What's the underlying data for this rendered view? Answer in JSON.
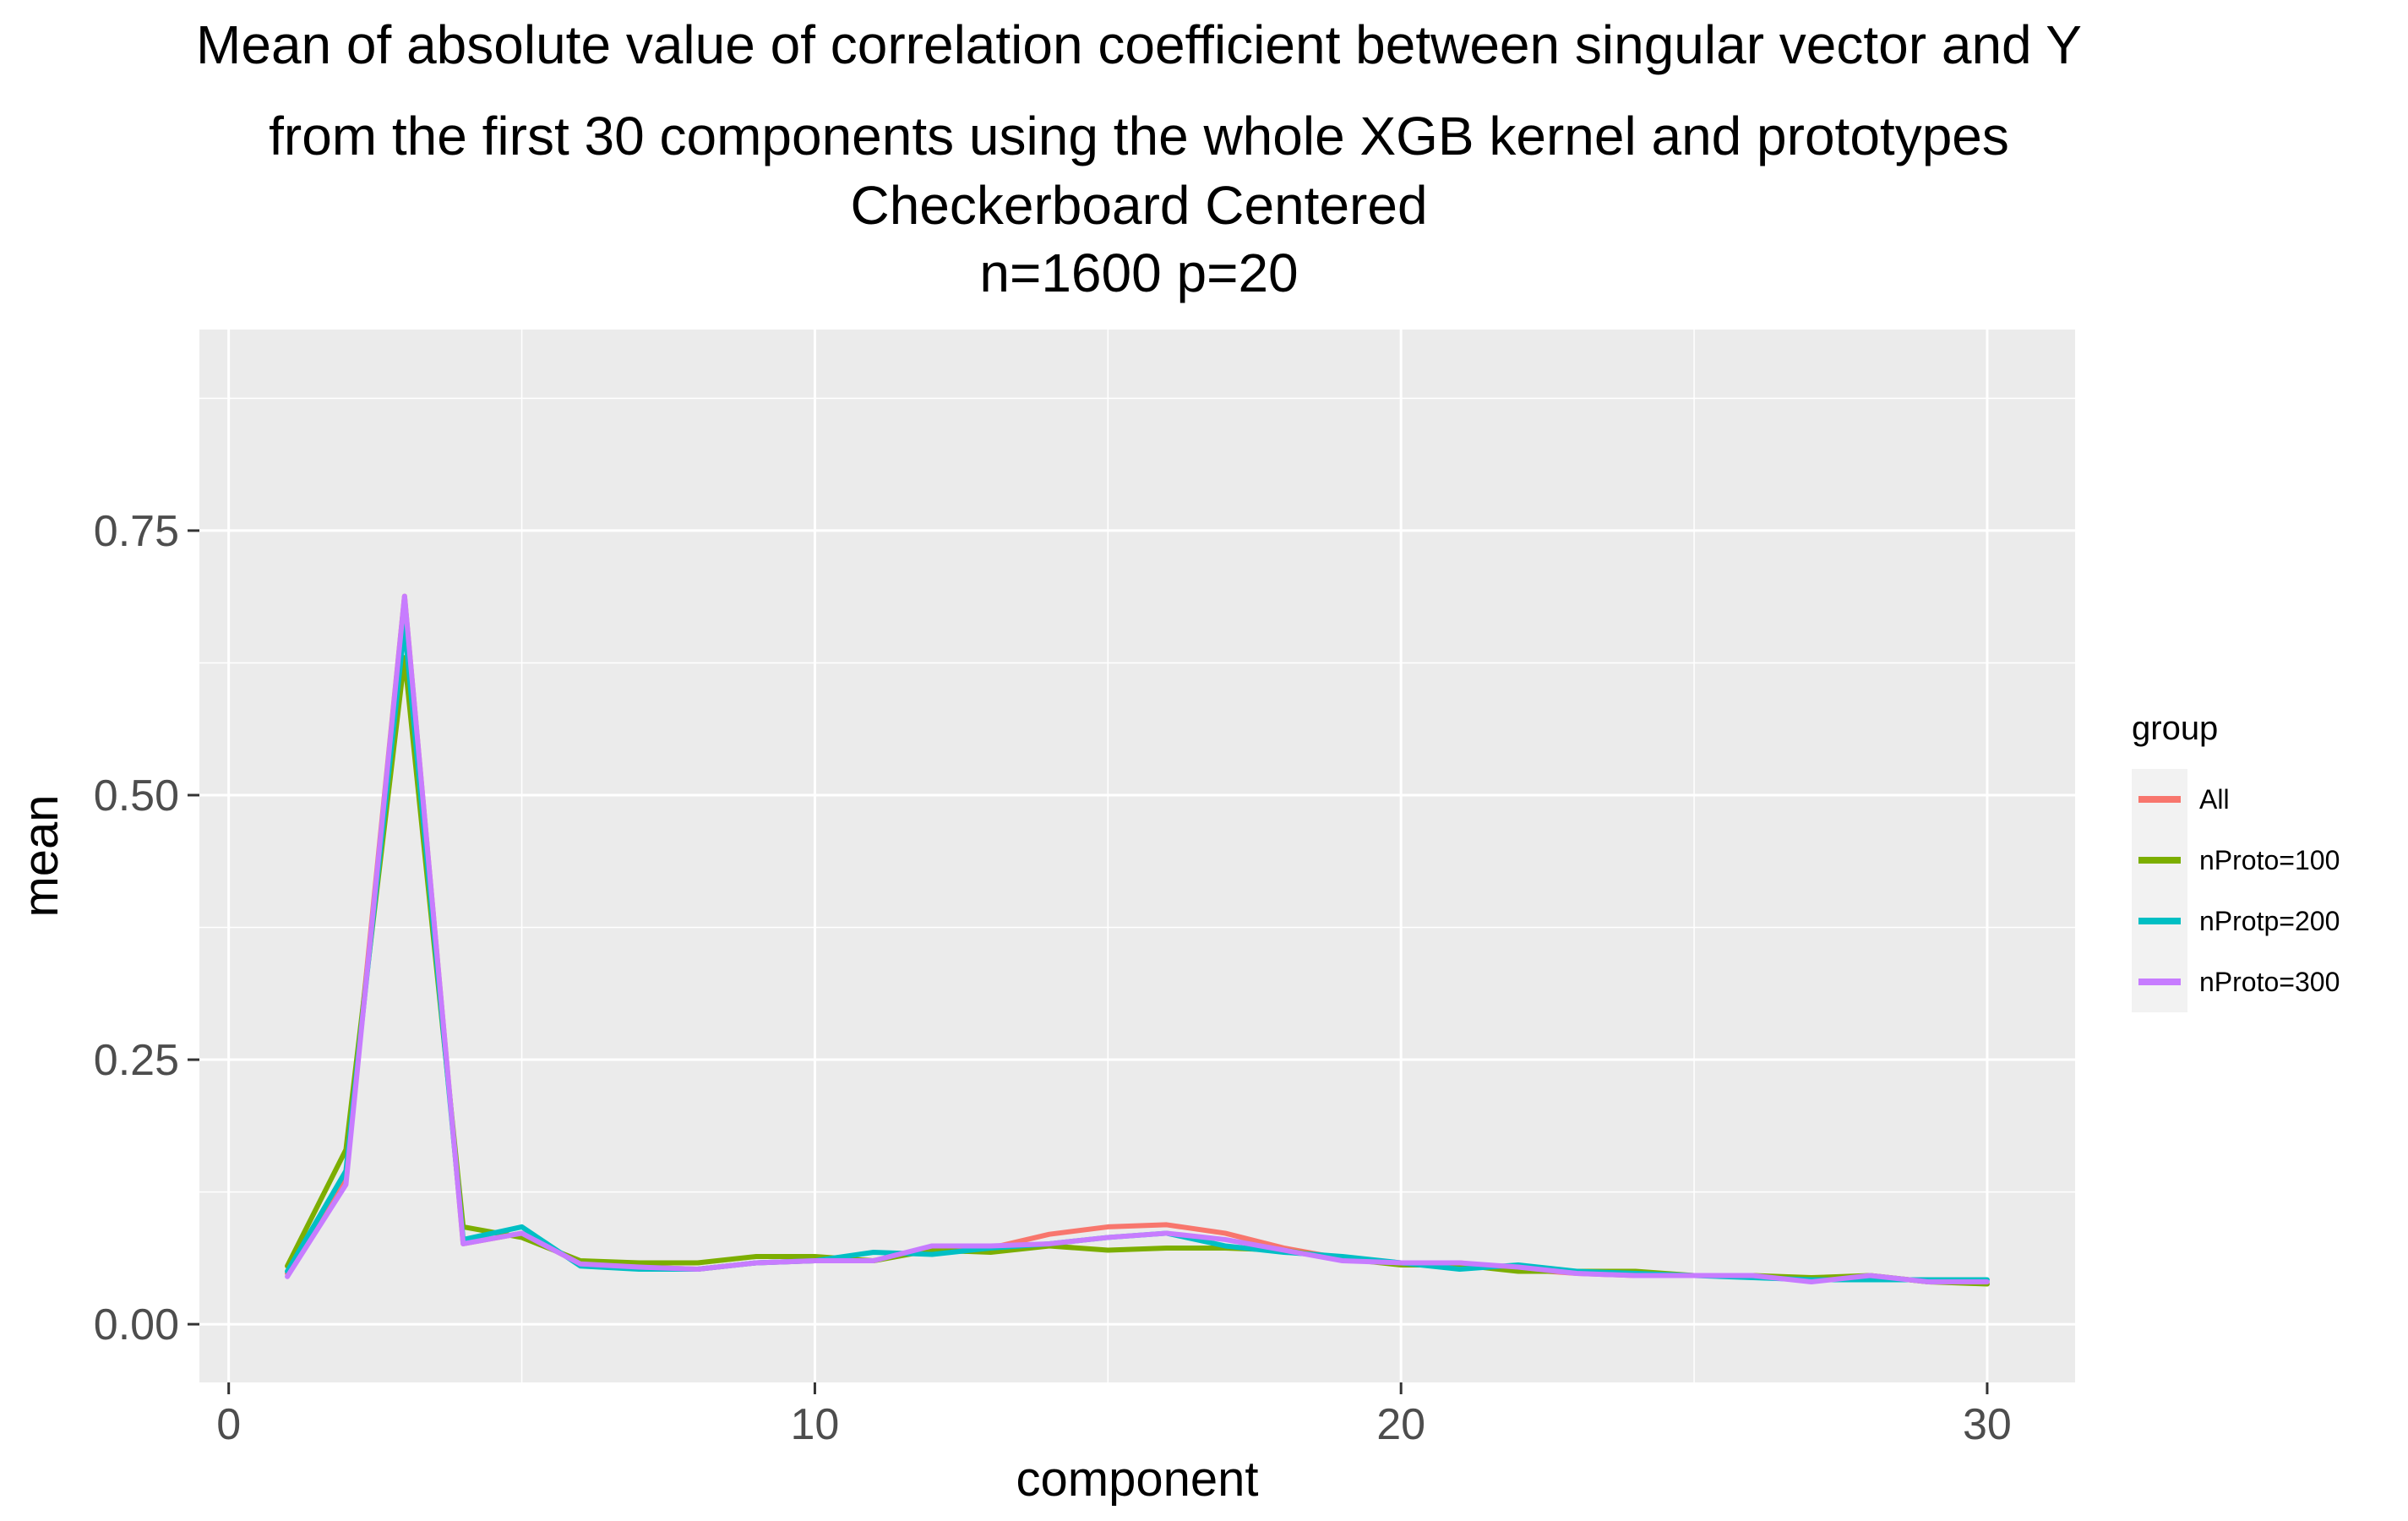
{
  "chart_data": {
    "type": "line",
    "title_lines": [
      "Mean of absolute value of correlation coefficient between singular vector and Y",
      "from the first 30 components using the whole XGB kernel and prototypes",
      "Checkerboard Centered",
      "n=1600 p=20"
    ],
    "xlabel": "component",
    "ylabel": "mean",
    "xlim": [
      -0.5,
      31.5
    ],
    "ylim": [
      -0.055,
      0.94
    ],
    "x_ticks": [
      0,
      10,
      20,
      30
    ],
    "x_tick_labels": [
      "0",
      "10",
      "20",
      "30"
    ],
    "y_ticks": [
      0,
      0.25,
      0.5,
      0.75
    ],
    "y_tick_labels": [
      "0.00",
      "0.25",
      "0.50",
      "0.75"
    ],
    "grid": true,
    "legend_title": "group",
    "legend_position": "right",
    "x": [
      1,
      2,
      3,
      4,
      5,
      6,
      7,
      8,
      9,
      10,
      11,
      12,
      13,
      14,
      15,
      16,
      17,
      18,
      19,
      20,
      21,
      22,
      23,
      24,
      25,
      26,
      27,
      28,
      29,
      30
    ],
    "series": [
      {
        "name": "All",
        "color": "#F8766D",
        "values": [
          0.048,
          0.14,
          0.688,
          0.076,
          0.086,
          0.057,
          0.054,
          0.052,
          0.058,
          0.06,
          0.06,
          0.072,
          0.072,
          0.085,
          0.092,
          0.094,
          0.086,
          0.072,
          0.062,
          0.058,
          0.058,
          0.052,
          0.048,
          0.046,
          0.046,
          0.046,
          0.042,
          0.046,
          0.04,
          0.04
        ]
      },
      {
        "name": "nProto=100",
        "color": "#7CAE00",
        "values": [
          0.055,
          0.165,
          0.63,
          0.092,
          0.082,
          0.06,
          0.058,
          0.058,
          0.064,
          0.064,
          0.06,
          0.07,
          0.068,
          0.074,
          0.07,
          0.072,
          0.072,
          0.07,
          0.062,
          0.056,
          0.056,
          0.05,
          0.05,
          0.05,
          0.046,
          0.046,
          0.044,
          0.046,
          0.04,
          0.038
        ]
      },
      {
        "name": "nProtp=200",
        "color": "#00BFC4",
        "values": [
          0.05,
          0.145,
          0.66,
          0.08,
          0.092,
          0.055,
          0.052,
          0.052,
          0.058,
          0.06,
          0.068,
          0.066,
          0.072,
          0.076,
          0.082,
          0.086,
          0.074,
          0.068,
          0.064,
          0.058,
          0.052,
          0.056,
          0.05,
          0.048,
          0.046,
          0.044,
          0.042,
          0.042,
          0.042,
          0.042
        ]
      },
      {
        "name": "nProto=300",
        "color": "#C77CFF",
        "values": [
          0.045,
          0.132,
          0.688,
          0.076,
          0.086,
          0.057,
          0.054,
          0.052,
          0.058,
          0.06,
          0.06,
          0.074,
          0.074,
          0.076,
          0.082,
          0.086,
          0.08,
          0.07,
          0.06,
          0.058,
          0.058,
          0.054,
          0.048,
          0.046,
          0.046,
          0.046,
          0.04,
          0.046,
          0.04,
          0.04
        ]
      }
    ]
  }
}
